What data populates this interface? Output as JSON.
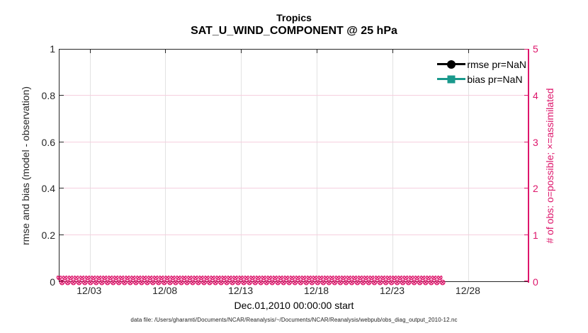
{
  "header": {
    "title": "Tropics",
    "subtitle": "SAT_U_WIND_COMPONENT @ 25 hPa"
  },
  "footer": {
    "data_file_note": "data file: /Users/gharamti/Documents/NCAR/Reanalysis/~/Documents/NCAR/Reanalysis/webpub/obs_diag_output_2010-12.nc"
  },
  "colors": {
    "obs_pink": "#dd166b",
    "grid_pink_tint": "#f6cfdf",
    "bias_teal": "#1a998c",
    "rmse_black": "#000000",
    "grid_gray": "#e2e2e2",
    "spine_dark": "#262626"
  },
  "chart_data": {
    "type": "line",
    "title": "Tropics",
    "subtitle": "SAT_U_WIND_COMPONENT @ 25 hPa",
    "xlabel": "Dec.01,2010 00:00:00 start",
    "ylabel_left": "rmse and bias (model - observation)",
    "ylabel_right": "# of obs: o=possible; ×=assimilated",
    "x_range_days": [
      0,
      31
    ],
    "x_ticks": [
      {
        "label": "12/03",
        "day": 2
      },
      {
        "label": "12/08",
        "day": 7
      },
      {
        "label": "12/13",
        "day": 12
      },
      {
        "label": "12/18",
        "day": 17
      },
      {
        "label": "12/23",
        "day": 22
      },
      {
        "label": "12/28",
        "day": 27
      }
    ],
    "y_left": {
      "lim": [
        0,
        1
      ],
      "ticks": [
        "0",
        "0.2",
        "0.4",
        "0.6",
        "0.8",
        "1"
      ]
    },
    "y_right": {
      "lim": [
        0,
        5
      ],
      "ticks": [
        "0",
        "1",
        "2",
        "3",
        "4",
        "5"
      ]
    },
    "grid": true,
    "legend_position": "upper-right-inside",
    "legend": [
      {
        "label": "rmse pr=NaN",
        "marker": "circle",
        "color": "#000000"
      },
      {
        "label": "bias pr=NaN",
        "marker": "square",
        "color": "#1a998c"
      }
    ],
    "series": [
      {
        "name": "rmse",
        "legend_label": "rmse pr=NaN",
        "color": "#000000",
        "marker": "circle",
        "values": "NaN — no curve plotted"
      },
      {
        "name": "bias",
        "legend_label": "bias pr=NaN",
        "color": "#1a998c",
        "marker": "square",
        "values": "NaN — no curve plotted"
      },
      {
        "name": "obs_possible",
        "marker": "o",
        "color": "#dd166b",
        "constant_value": 0,
        "n_times": 62
      },
      {
        "name": "obs_assimilated",
        "marker": "×",
        "color": "#dd166b",
        "constant_value": 0,
        "n_times": 62
      }
    ],
    "band": {
      "glyph": "⊗",
      "glyphs_per_row": 68,
      "rows": 2
    }
  }
}
